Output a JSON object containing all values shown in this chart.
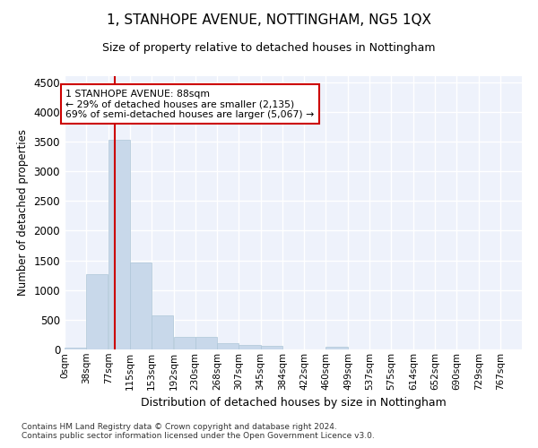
{
  "title": "1, STANHOPE AVENUE, NOTTINGHAM, NG5 1QX",
  "subtitle": "Size of property relative to detached houses in Nottingham",
  "xlabel": "Distribution of detached houses by size in Nottingham",
  "ylabel": "Number of detached properties",
  "bar_color": "#c8d8ea",
  "bar_edge_color": "#aec6d8",
  "bg_color": "#eef2fb",
  "grid_color": "#ffffff",
  "red_line_x": 88,
  "annotation_line1": "1 STANHOPE AVENUE: 88sqm",
  "annotation_line2": "← 29% of detached houses are smaller (2,135)",
  "annotation_line3": "69% of semi-detached houses are larger (5,067) →",
  "annotation_box_color": "#ffffff",
  "annotation_border_color": "#cc0000",
  "categories": [
    "0sqm",
    "38sqm",
    "77sqm",
    "115sqm",
    "153sqm",
    "192sqm",
    "230sqm",
    "268sqm",
    "307sqm",
    "345sqm",
    "384sqm",
    "422sqm",
    "460sqm",
    "499sqm",
    "537sqm",
    "575sqm",
    "614sqm",
    "652sqm",
    "690sqm",
    "729sqm",
    "767sqm"
  ],
  "bin_edges": [
    0,
    38,
    77,
    115,
    153,
    192,
    230,
    268,
    307,
    345,
    384,
    422,
    460,
    499,
    537,
    575,
    614,
    652,
    690,
    729,
    767
  ],
  "bin_width": 38,
  "values": [
    30,
    1260,
    3530,
    1460,
    570,
    215,
    210,
    105,
    75,
    55,
    0,
    0,
    45,
    0,
    0,
    0,
    0,
    0,
    0,
    0,
    0
  ],
  "ylim": [
    0,
    4600
  ],
  "yticks": [
    0,
    500,
    1000,
    1500,
    2000,
    2500,
    3000,
    3500,
    4000,
    4500
  ],
  "footer_line1": "Contains HM Land Registry data © Crown copyright and database right 2024.",
  "footer_line2": "Contains public sector information licensed under the Open Government Licence v3.0."
}
